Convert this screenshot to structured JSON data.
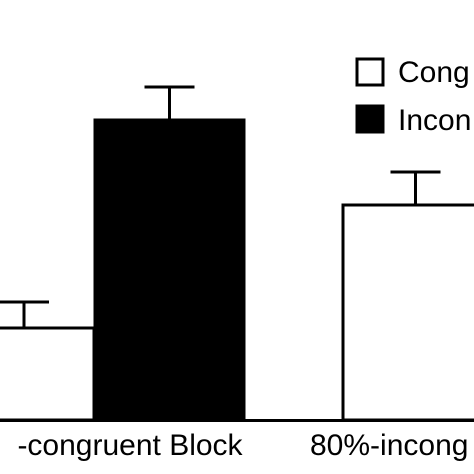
{
  "chart_data": {
    "type": "bar",
    "categories": [
      "-congruent Block",
      "80%-incong"
    ],
    "series": [
      {
        "name": "Cong",
        "fill": "#ffffff",
        "values": [
          92,
          215
        ],
        "errors": [
          26,
          33
        ]
      },
      {
        "name": "Incon",
        "fill": "#000000",
        "values": [
          300,
          null
        ],
        "errors": [
          33,
          null
        ]
      }
    ],
    "ylim": [
      0,
      420
    ],
    "grid": false,
    "legend_position": "top-right"
  }
}
